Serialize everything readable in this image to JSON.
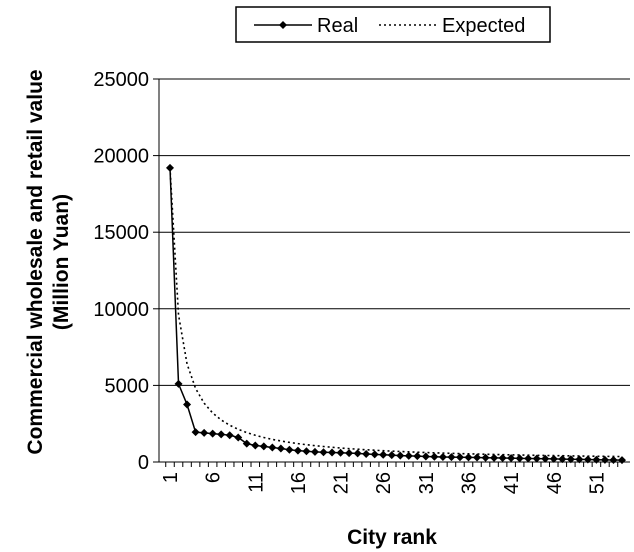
{
  "chart_data": {
    "type": "line",
    "xlabel": "City rank",
    "ylabel_lines": [
      "Commercial wholesale and retail value",
      "(Million Yuan)"
    ],
    "ylim": [
      0,
      25000
    ],
    "yticks": [
      0,
      5000,
      10000,
      15000,
      20000,
      25000
    ],
    "xlim": [
      1,
      54
    ],
    "xticks": [
      1,
      6,
      11,
      16,
      21,
      26,
      31,
      36,
      41,
      46,
      51
    ],
    "grid": "horizontal",
    "legend_position": "top-center",
    "x": [
      1,
      2,
      3,
      4,
      5,
      6,
      7,
      8,
      9,
      10,
      11,
      12,
      13,
      14,
      15,
      16,
      17,
      18,
      19,
      20,
      21,
      22,
      23,
      24,
      25,
      26,
      27,
      28,
      29,
      30,
      31,
      32,
      33,
      34,
      35,
      36,
      37,
      38,
      39,
      40,
      41,
      42,
      43,
      44,
      45,
      46,
      47,
      48,
      49,
      50,
      51,
      52,
      53,
      54
    ],
    "series": [
      {
        "name": "Real",
        "style": "solid-diamond",
        "color": "#000000",
        "values": [
          19200,
          5100,
          3750,
          1950,
          1900,
          1850,
          1800,
          1750,
          1600,
          1200,
          1080,
          1020,
          950,
          880,
          800,
          740,
          700,
          660,
          640,
          620,
          600,
          580,
          560,
          520,
          500,
          470,
          450,
          420,
          400,
          380,
          360,
          340,
          330,
          320,
          310,
          300,
          290,
          280,
          270,
          260,
          250,
          240,
          230,
          220,
          210,
          200,
          190,
          180,
          170,
          160,
          150,
          140,
          130,
          120
        ]
      },
      {
        "name": "Expected",
        "style": "dotted",
        "color": "#000000",
        "values": [
          19200,
          9600,
          6400,
          4800,
          3840,
          3200,
          2743,
          2400,
          2133,
          1920,
          1745,
          1600,
          1477,
          1371,
          1280,
          1200,
          1129,
          1067,
          1011,
          960,
          914,
          873,
          835,
          800,
          768,
          738,
          711,
          686,
          662,
          640,
          619,
          600,
          582,
          565,
          549,
          533,
          519,
          505,
          492,
          480,
          468,
          457,
          447,
          436,
          427,
          417,
          409,
          400,
          392,
          384,
          376,
          369,
          362,
          356
        ]
      }
    ]
  }
}
